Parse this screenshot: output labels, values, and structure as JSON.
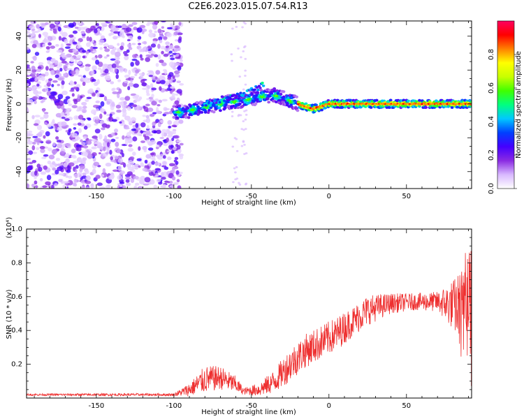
{
  "title": "C2E6.2023.015.07.54.R13",
  "chart_data": [
    {
      "type": "heatmap",
      "xlabel": "Height of straight line (km)",
      "ylabel": "Frequency (Hz)",
      "xlim": [
        -195,
        92
      ],
      "ylim": [
        -50,
        49
      ],
      "xticks": [
        -150,
        -100,
        -50,
        0,
        50
      ],
      "yticks": [
        -40,
        -20,
        0,
        20,
        40
      ],
      "colorbar": {
        "label": "Normalized spectral amplitude",
        "ticks": [
          "0.0",
          "0.2",
          "0.4",
          "0.6",
          "0.8"
        ],
        "range": [
          0,
          1
        ],
        "colormap": [
          "#ffffff",
          "#d8b8ff",
          "#8a2be2",
          "#4400ff",
          "#0040ff",
          "#00c8ff",
          "#00ff80",
          "#40ff00",
          "#c8ff00",
          "#ffff00",
          "#ff8000",
          "#ff0000",
          "#ff0060"
        ]
      },
      "ridge": [
        {
          "x": -95,
          "y": -5
        },
        {
          "x": -85,
          "y": -3
        },
        {
          "x": -75,
          "y": -1
        },
        {
          "x": -65,
          "y": 1
        },
        {
          "x": -55,
          "y": 2
        },
        {
          "x": -45,
          "y": 4
        },
        {
          "x": -35,
          "y": 5
        },
        {
          "x": -28,
          "y": 3
        },
        {
          "x": -20,
          "y": 0
        },
        {
          "x": -10,
          "y": -3
        },
        {
          "x": 0,
          "y": 0
        },
        {
          "x": 20,
          "y": 0
        },
        {
          "x": 50,
          "y": 0
        },
        {
          "x": 80,
          "y": 0
        },
        {
          "x": 92,
          "y": 0
        }
      ],
      "upper_branch": [
        {
          "x": -80,
          "y": 0
        },
        {
          "x": -65,
          "y": 3
        },
        {
          "x": -55,
          "y": 6
        },
        {
          "x": -45,
          "y": 10
        },
        {
          "x": -42,
          "y": 12
        }
      ]
    },
    {
      "type": "line",
      "xlabel": "Height of straight line (km)",
      "ylabel": "SNR (10 * v/v)",
      "exponent_label": "(x10⁴)",
      "xlim": [
        -195,
        92
      ],
      "ylim": [
        0,
        1.0
      ],
      "xticks": [
        -150,
        -100,
        -50,
        0,
        50
      ],
      "yticks": [
        0.2,
        0.4,
        0.6,
        0.8,
        1.0
      ],
      "color": "#ee3030",
      "envelope": [
        {
          "x": -195,
          "mean": 0.02,
          "amp": 0.006
        },
        {
          "x": -100,
          "mean": 0.02,
          "amp": 0.008
        },
        {
          "x": -90,
          "mean": 0.05,
          "amp": 0.04
        },
        {
          "x": -80,
          "mean": 0.11,
          "amp": 0.08
        },
        {
          "x": -70,
          "mean": 0.12,
          "amp": 0.07
        },
        {
          "x": -60,
          "mean": 0.08,
          "amp": 0.05
        },
        {
          "x": -55,
          "mean": 0.04,
          "amp": 0.02
        },
        {
          "x": -45,
          "mean": 0.05,
          "amp": 0.04
        },
        {
          "x": -35,
          "mean": 0.1,
          "amp": 0.07
        },
        {
          "x": -25,
          "mean": 0.2,
          "amp": 0.1
        },
        {
          "x": -15,
          "mean": 0.28,
          "amp": 0.1
        },
        {
          "x": -5,
          "mean": 0.33,
          "amp": 0.1
        },
        {
          "x": 5,
          "mean": 0.38,
          "amp": 0.1
        },
        {
          "x": 15,
          "mean": 0.45,
          "amp": 0.09
        },
        {
          "x": 25,
          "mean": 0.52,
          "amp": 0.09
        },
        {
          "x": 40,
          "mean": 0.56,
          "amp": 0.06
        },
        {
          "x": 55,
          "mean": 0.57,
          "amp": 0.05
        },
        {
          "x": 70,
          "mean": 0.57,
          "amp": 0.06
        },
        {
          "x": 80,
          "mean": 0.55,
          "amp": 0.15
        },
        {
          "x": 92,
          "mean": 0.5,
          "amp": 0.35
        }
      ]
    }
  ]
}
